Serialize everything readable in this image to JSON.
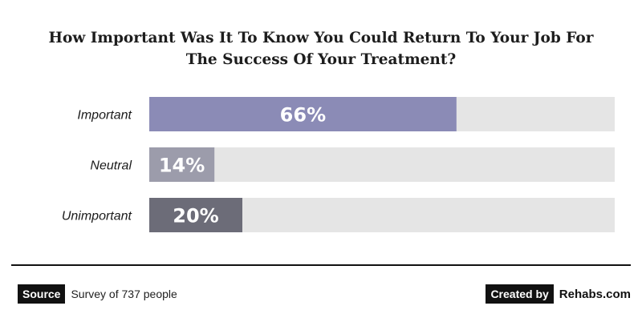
{
  "chart_data": {
    "type": "bar",
    "orientation": "horizontal",
    "title_lines": [
      "How Important Was It To Know You Could Return To Your Job For",
      "The Success Of Your Treatment?"
    ],
    "categories": [
      "Important",
      "Neutral",
      "Unimportant"
    ],
    "values": [
      66,
      14,
      20
    ],
    "value_labels": [
      "66%",
      "14%",
      "20%"
    ],
    "bar_colors": [
      "#8b8bb6",
      "#9c9cab",
      "#6c6c78"
    ],
    "track_color": "#e5e5e5",
    "xlim": [
      0,
      100
    ],
    "grid": false,
    "legend": "none"
  },
  "footer": {
    "source_label": "Source",
    "source_text": "Survey of 737 people",
    "created_label": "Created by",
    "brand": "Rehabs.com"
  }
}
